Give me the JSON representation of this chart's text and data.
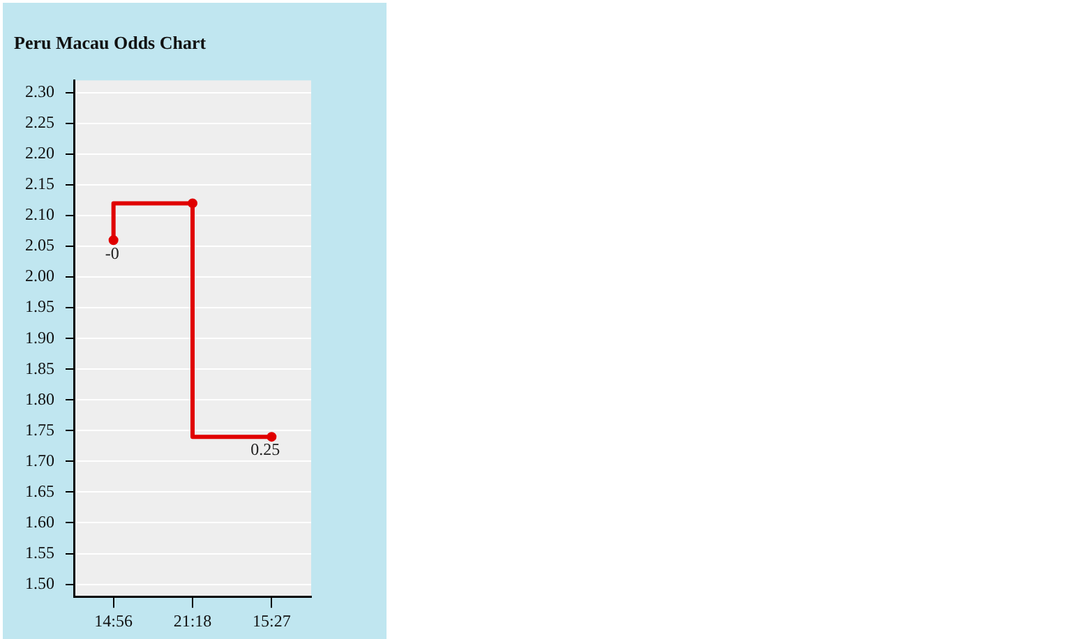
{
  "chart_data": {
    "type": "step",
    "title": "Peru Macau Odds Chart",
    "categories": [
      "14:56",
      "21:18",
      "15:27"
    ],
    "series": [
      {
        "color": "#e00000",
        "values": [
          2.06,
          2.12,
          1.74
        ]
      }
    ],
    "annotations": [
      {
        "text": "-0",
        "x": "14:56",
        "y": 2.06
      },
      {
        "text": "0.25",
        "x": "15:27",
        "y": 1.74
      }
    ],
    "ylim": [
      1.48,
      2.32
    ],
    "yticks": [
      {
        "value": 1.5,
        "label": "1.50"
      },
      {
        "value": 1.55,
        "label": "1.55"
      },
      {
        "value": 1.6,
        "label": "1.60"
      },
      {
        "value": 1.65,
        "label": "1.65"
      },
      {
        "value": 1.7,
        "label": "1.70"
      },
      {
        "value": 1.75,
        "label": "1.75"
      },
      {
        "value": 1.8,
        "label": "1.80"
      },
      {
        "value": 1.85,
        "label": "1.85"
      },
      {
        "value": 1.9,
        "label": "1.90"
      },
      {
        "value": 1.95,
        "label": "1.95"
      },
      {
        "value": 2.0,
        "label": "2.00"
      },
      {
        "value": 2.05,
        "label": "2.05"
      },
      {
        "value": 2.1,
        "label": "2.10"
      },
      {
        "value": 2.15,
        "label": "2.15"
      },
      {
        "value": 2.2,
        "label": "2.20"
      },
      {
        "value": 2.25,
        "label": "2.25"
      },
      {
        "value": 2.3,
        "label": "2.30"
      }
    ],
    "grid": "y",
    "legend": false,
    "marker": "circle",
    "line_style": "solid"
  }
}
